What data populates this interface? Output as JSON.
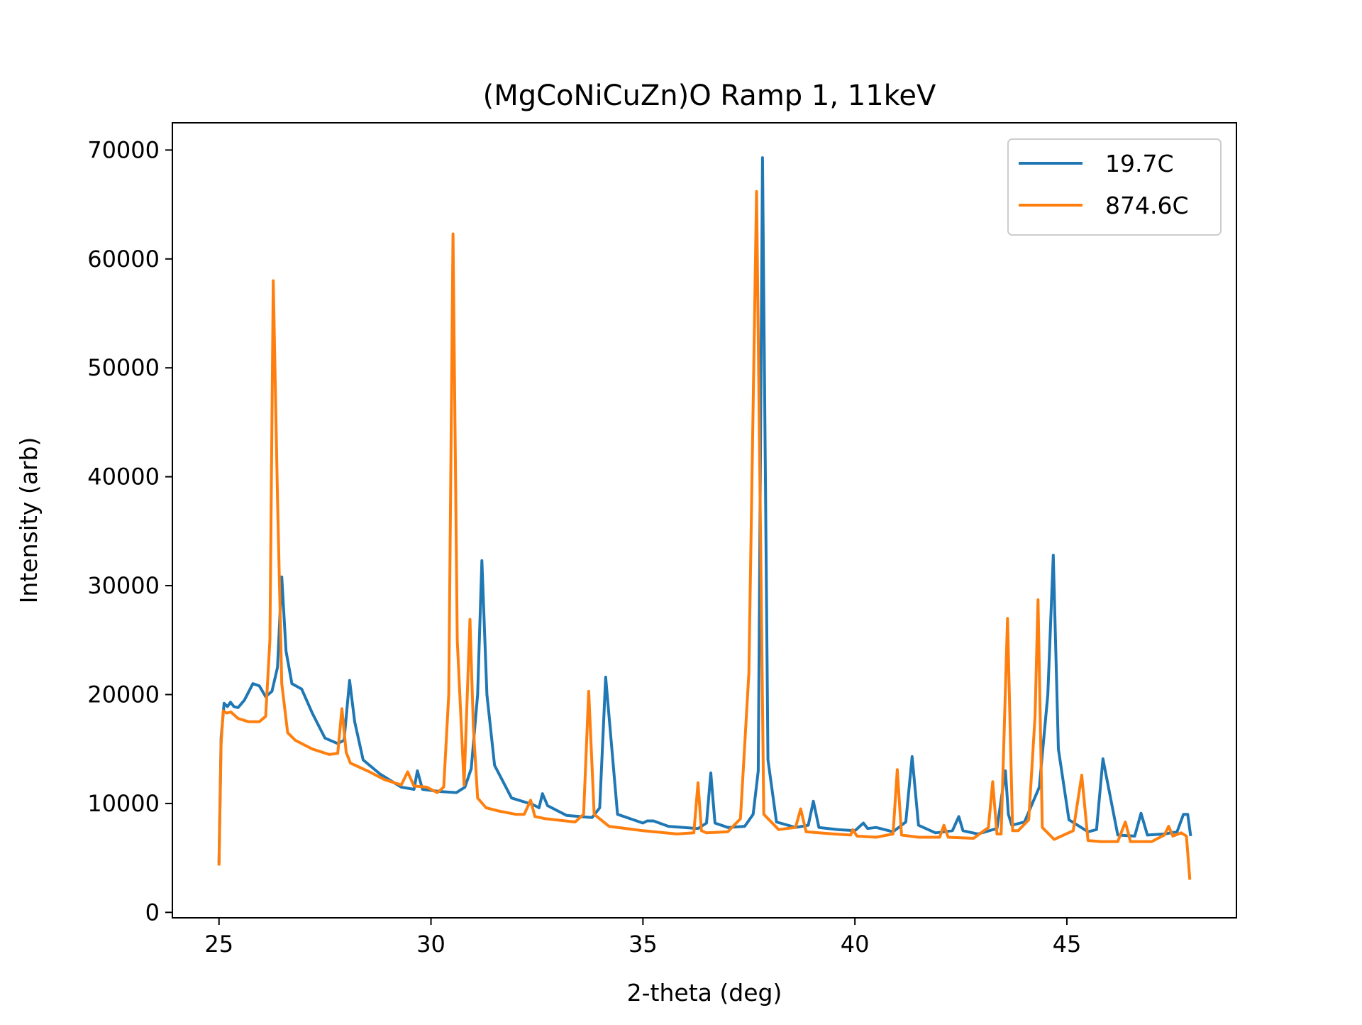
{
  "chart_data": {
    "type": "line",
    "title": "(MgCoNiCuZn)O Ramp 1, 11keV",
    "xlabel": "2-theta (deg)",
    "ylabel": "Intensity (arb)",
    "xlim": [
      23.9,
      49.0
    ],
    "ylim": [
      -500,
      72500
    ],
    "xticks": [
      25,
      30,
      35,
      40,
      45
    ],
    "yticks": [
      0,
      10000,
      20000,
      30000,
      40000,
      50000,
      60000,
      70000
    ],
    "grid": false,
    "legend_position": "top-right",
    "series": [
      {
        "name": "19.7C",
        "color": "#1f77b4",
        "x": [
          25.0,
          25.05,
          25.12,
          25.2,
          25.27,
          25.35,
          25.45,
          25.6,
          25.8,
          25.95,
          26.1,
          26.25,
          26.38,
          26.48,
          26.58,
          26.72,
          26.95,
          27.2,
          27.5,
          27.8,
          27.95,
          28.08,
          28.2,
          28.4,
          28.8,
          29.3,
          29.6,
          29.68,
          29.8,
          30.2,
          30.6,
          30.8,
          30.95,
          31.1,
          31.2,
          31.32,
          31.5,
          31.9,
          32.4,
          32.55,
          32.63,
          32.75,
          33.2,
          33.8,
          33.98,
          34.12,
          34.4,
          35.0,
          35.1,
          35.25,
          35.6,
          36.3,
          36.5,
          36.6,
          36.7,
          37.0,
          37.4,
          37.6,
          37.72,
          37.82,
          37.95,
          38.15,
          38.6,
          38.9,
          39.02,
          39.15,
          39.6,
          40.0,
          40.2,
          40.3,
          40.5,
          40.9,
          41.2,
          41.35,
          41.5,
          41.9,
          42.3,
          42.45,
          42.55,
          42.9,
          43.35,
          43.55,
          43.62,
          43.7,
          44.0,
          44.35,
          44.55,
          44.68,
          44.8,
          45.05,
          45.5,
          45.7,
          45.85,
          46.2,
          46.6,
          46.75,
          46.9,
          47.3,
          47.6,
          47.75,
          47.85,
          47.92
        ],
        "values": [
          4500,
          16000,
          19200,
          18900,
          19300,
          18900,
          18800,
          19500,
          21000,
          20800,
          19800,
          20300,
          22500,
          30800,
          24000,
          21000,
          20500,
          18300,
          16000,
          15500,
          15800,
          21300,
          17500,
          14000,
          12700,
          11500,
          11300,
          13000,
          11300,
          11100,
          11000,
          11500,
          13200,
          20000,
          32300,
          20000,
          13500,
          10500,
          9900,
          9600,
          10900,
          9800,
          8900,
          8700,
          9600,
          21600,
          9000,
          8200,
          8400,
          8400,
          7900,
          7700,
          8200,
          12800,
          8200,
          7800,
          7900,
          9000,
          13000,
          69300,
          14000,
          8300,
          7800,
          8000,
          10200,
          7800,
          7600,
          7500,
          8200,
          7700,
          7800,
          7400,
          8300,
          14300,
          8000,
          7300,
          7500,
          8800,
          7500,
          7200,
          7700,
          13000,
          9000,
          8000,
          8300,
          11500,
          20000,
          32800,
          15000,
          8500,
          7400,
          7600,
          14100,
          7100,
          7000,
          9100,
          7100,
          7200,
          7400,
          9000,
          9000,
          7000
        ]
      },
      {
        "name": "874.6C",
        "color": "#ff7f0e",
        "x": [
          25.0,
          25.05,
          25.1,
          25.18,
          25.28,
          25.45,
          25.7,
          25.95,
          26.1,
          26.2,
          26.28,
          26.38,
          26.48,
          26.62,
          26.8,
          27.2,
          27.6,
          27.8,
          27.9,
          28.0,
          28.1,
          28.5,
          28.9,
          29.3,
          29.45,
          29.6,
          29.9,
          30.15,
          30.3,
          30.42,
          30.52,
          30.62,
          30.78,
          30.92,
          31.0,
          31.1,
          31.3,
          31.6,
          32.0,
          32.2,
          32.35,
          32.45,
          32.7,
          33.4,
          33.6,
          33.72,
          33.85,
          34.2,
          35.0,
          35.8,
          36.2,
          36.3,
          36.38,
          36.5,
          37.0,
          37.3,
          37.5,
          37.68,
          37.85,
          38.2,
          38.6,
          38.72,
          38.85,
          39.5,
          39.9,
          39.95,
          40.05,
          40.5,
          40.9,
          41.0,
          41.1,
          41.5,
          42.0,
          42.1,
          42.2,
          42.8,
          43.15,
          43.25,
          43.35,
          43.45,
          43.6,
          43.72,
          43.85,
          44.1,
          44.25,
          44.32,
          44.42,
          44.7,
          45.15,
          45.35,
          45.5,
          45.8,
          46.2,
          46.38,
          46.5,
          47.0,
          47.3,
          47.4,
          47.5,
          47.7,
          47.82,
          47.9
        ],
        "values": [
          4300,
          15500,
          18500,
          18300,
          18400,
          17800,
          17500,
          17500,
          18000,
          25000,
          58000,
          38000,
          21000,
          16500,
          15800,
          15000,
          14500,
          14600,
          18700,
          14700,
          13700,
          13000,
          12200,
          11700,
          12900,
          11600,
          11500,
          11000,
          11500,
          20000,
          62300,
          25000,
          11700,
          26900,
          17000,
          10500,
          9600,
          9300,
          9000,
          9000,
          10300,
          8800,
          8600,
          8300,
          9000,
          20300,
          9000,
          7900,
          7500,
          7200,
          7300,
          11900,
          7500,
          7300,
          7400,
          8600,
          22000,
          66200,
          9000,
          7600,
          7800,
          9500,
          7400,
          7200,
          7100,
          7600,
          7000,
          6900,
          7200,
          13100,
          7100,
          6900,
          6900,
          8000,
          6900,
          6800,
          7800,
          12000,
          7200,
          7200,
          27000,
          7500,
          7500,
          8500,
          18000,
          28700,
          7800,
          6700,
          7500,
          12600,
          6600,
          6500,
          6500,
          8300,
          6500,
          6500,
          7100,
          7900,
          7000,
          7300,
          7000,
          3000
        ]
      }
    ]
  }
}
